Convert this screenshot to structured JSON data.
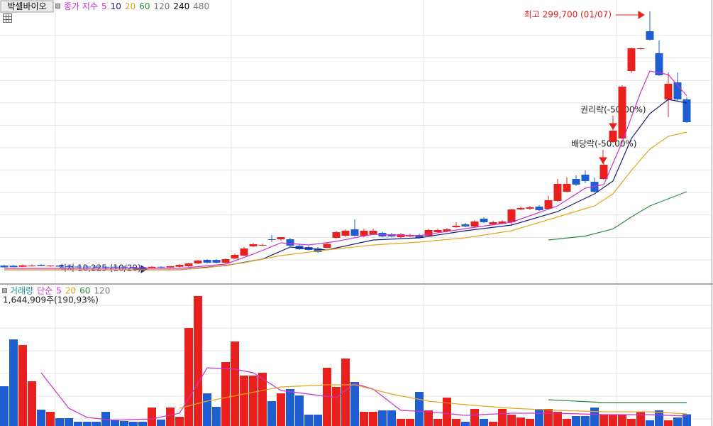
{
  "chart_data": [
    {
      "type": "candlestick",
      "title": "박셀바이오",
      "indicator_label": "종가 지수",
      "up_color": "#e8211e",
      "down_color": "#1e5ed2",
      "ylim": [
        -6000,
        306000
      ],
      "open": [
        13200,
        13000,
        11800,
        12800,
        14000,
        12400,
        13200,
        12400,
        12000,
        12000,
        12000,
        11800,
        11800,
        11800,
        11600,
        11400,
        10600,
        11800,
        11000,
        11800,
        12400,
        15600,
        19600,
        19600,
        16400,
        21200,
        24400,
        34800,
        35600,
        42800,
        42800,
        42800,
        35600,
        34000,
        32400,
        33200,
        44400,
        46800,
        54000,
        46800,
        48400,
        50000,
        48400,
        45200,
        46000,
        47600,
        46800,
        50800,
        51600,
        56400,
        59600,
        57200,
        66000,
        59600,
        60400,
        62000,
        76400,
        77200,
        79600,
        77200,
        86000,
        96400,
        110800,
        115600,
        107600,
        110800,
        152400,
        156400,
        232400,
        257200,
        277200,
        252400,
        200400,
        219600,
        200400
      ],
      "high": [
        14000,
        13800,
        14400,
        14400,
        14800,
        13600,
        14000,
        13200,
        12800,
        12800,
        12800,
        12600,
        12400,
        12400,
        12400,
        12000,
        12400,
        12400,
        12800,
        14800,
        16400,
        19600,
        20400,
        20400,
        21200,
        26800,
        34000,
        38800,
        37600,
        47600,
        45200,
        44400,
        37200,
        35600,
        34000,
        38800,
        52400,
        54000,
        65200,
        54800,
        54800,
        51600,
        50000,
        50000,
        49200,
        49200,
        54800,
        54800,
        55600,
        62000,
        61200,
        64400,
        67600,
        63600,
        64400,
        77200,
        79600,
        80400,
        81200,
        91600,
        110800,
        112400,
        114800,
        120400,
        112400,
        132400,
        180400,
        216400,
        258800,
        258800,
        299700,
        266800,
        230800,
        230800,
        202800
      ],
      "low": [
        11000,
        11200,
        11400,
        12000,
        12400,
        11800,
        11600,
        11000,
        10800,
        10800,
        10800,
        10800,
        10800,
        10800,
        10600,
        10225,
        10400,
        10600,
        10600,
        11000,
        11600,
        14800,
        15600,
        15600,
        15600,
        20400,
        23600,
        34000,
        34800,
        39600,
        41200,
        34000,
        30800,
        30000,
        27600,
        32400,
        43600,
        45200,
        46000,
        45200,
        47600,
        45200,
        45200,
        44400,
        45200,
        43600,
        46000,
        50000,
        50800,
        55600,
        56400,
        56400,
        61200,
        58800,
        59600,
        58000,
        75600,
        75600,
        74800,
        76400,
        85200,
        95600,
        102800,
        106000,
        95600,
        110000,
        151600,
        155600,
        230000,
        256400,
        266800,
        226800,
        180400,
        198800,
        174000
      ],
      "close": [
        11200,
        11400,
        13400,
        13200,
        12800,
        13200,
        12000,
        11400,
        11200,
        11200,
        11000,
        11000,
        11000,
        11000,
        10800,
        10600,
        11800,
        11000,
        12400,
        14000,
        15600,
        18800,
        16400,
        16400,
        20400,
        25200,
        32400,
        37200,
        36400,
        42000,
        45200,
        35600,
        31600,
        30800,
        28400,
        37600,
        50800,
        52400,
        46800,
        52400,
        52400,
        46000,
        46000,
        48400,
        47600,
        44400,
        53200,
        53200,
        54000,
        58000,
        57200,
        62800,
        62000,
        62000,
        62800,
        76400,
        78000,
        78800,
        75600,
        86800,
        105200,
        105200,
        104400,
        108400,
        96400,
        126800,
        165200,
        214800,
        258000,
        258000,
        267600,
        227600,
        218000,
        200400,
        174800
      ],
      "ma_lines": [
        {
          "name": "5",
          "color": "#d030d0",
          "x": [
            0,
            19,
            24,
            27,
            30,
            33,
            36,
            40,
            45,
            50,
            55,
            60,
            63,
            65,
            67,
            69,
            70,
            72,
            74
          ],
          "values": [
            10000,
            10000,
            14800,
            26000,
            38800,
            36400,
            40400,
            48400,
            46800,
            54800,
            62000,
            80400,
            100400,
            104400,
            152400,
            208400,
            232400,
            228400,
            204400
          ]
        },
        {
          "name": "10",
          "color": "#1a1a80",
          "x": [
            0,
            19,
            24,
            28,
            31,
            35,
            40,
            45,
            50,
            55,
            60,
            64,
            66,
            68,
            70,
            72,
            74
          ],
          "values": [
            8400,
            8400,
            13200,
            20400,
            34000,
            30800,
            42000,
            44400,
            52400,
            58800,
            74000,
            94000,
            108400,
            156400,
            184400,
            200400,
            196400
          ]
        },
        {
          "name": "20",
          "color": "#e8a317",
          "x": [
            0,
            19,
            22,
            26,
            30,
            35,
            40,
            45,
            50,
            55,
            60,
            64,
            66,
            68,
            70,
            72,
            74
          ],
          "values": [
            8400,
            8400,
            10800,
            16400,
            24400,
            30800,
            36400,
            39600,
            44400,
            52400,
            68000,
            80400,
            94000,
            120400,
            144400,
            158800,
            163600
          ]
        },
        {
          "name": "60",
          "color": "#2e8b3e",
          "x": [
            59,
            63,
            66,
            68,
            70,
            72,
            74
          ],
          "values": [
            42000,
            46400,
            54400,
            68000,
            80400,
            88400,
            96400
          ]
        },
        {
          "name": "120",
          "color": "#7a7a7a"
        },
        {
          "name": "240",
          "color": "#000000"
        },
        {
          "name": "480",
          "color": "#7a7a7a"
        }
      ],
      "annotations": [
        "최고 299,700 (01/07)",
        "최저 10,225 (10/20)",
        "권리락(-50.00%)",
        "배당락(-50.00%)"
      ]
    },
    {
      "type": "bar",
      "title": "거래량",
      "indicator_label": "단순",
      "subtitle": "1,644,909주(190,93%)",
      "ylim": [
        0,
        19700000
      ],
      "values": [
        5600000,
        12200000,
        11400000,
        6300000,
        2300000,
        2000000,
        1100000,
        1100000,
        600000,
        600000,
        600000,
        2000000,
        900000,
        700000,
        600000,
        600000,
        2600000,
        900000,
        2600000,
        1300000,
        13800000,
        18300000,
        4600000,
        2700000,
        9000000,
        11900000,
        7100000,
        7100000,
        7500000,
        3500000,
        4600000,
        5200000,
        4300000,
        1600000,
        1600000,
        8200000,
        5500000,
        9500000,
        6200000,
        2000000,
        2000000,
        2200000,
        2200000,
        1000000,
        1000000,
        4800000,
        2200000,
        1000000,
        4000000,
        1000000,
        600000,
        2400000,
        1000000,
        600000,
        2400000,
        1600000,
        1200000,
        1000000,
        2400000,
        2400000,
        2000000,
        1000000,
        1400000,
        1400000,
        2600000,
        1600000,
        1600000,
        1600000,
        1000000,
        2000000,
        800000,
        2200000,
        800000,
        1200000,
        1644909
      ],
      "ma_lines": [
        {
          "name": "5",
          "color": "#d030d0",
          "x": [
            4,
            7,
            9,
            12,
            16,
            19,
            21,
            22,
            25,
            27,
            30,
            33,
            36,
            38,
            40,
            43,
            46,
            50,
            55,
            60,
            65,
            70,
            74
          ],
          "values": [
            7500000,
            2500000,
            1200000,
            800000,
            1000000,
            1800000,
            6000000,
            8200000,
            8000000,
            7500000,
            5000000,
            4500000,
            4000000,
            6000000,
            5200000,
            2200000,
            2000000,
            1500000,
            1800000,
            1800000,
            1600000,
            1600000,
            1400000
          ]
        },
        {
          "name": "20",
          "color": "#e8a317",
          "x": [
            19,
            22,
            26,
            30,
            35,
            38,
            42,
            46,
            50,
            55,
            60,
            65,
            70,
            74
          ],
          "values": [
            2500000,
            3500000,
            4500000,
            5500000,
            5800000,
            5800000,
            4500000,
            3500000,
            3000000,
            2500000,
            2200000,
            2000000,
            2000000,
            1700000
          ]
        },
        {
          "name": "60",
          "color": "#2e8b3e",
          "x": [
            59,
            65,
            74
          ],
          "values": [
            3700000,
            3300000,
            3300000
          ]
        },
        {
          "name": "120",
          "color": "#7a7a7a"
        }
      ]
    }
  ]
}
